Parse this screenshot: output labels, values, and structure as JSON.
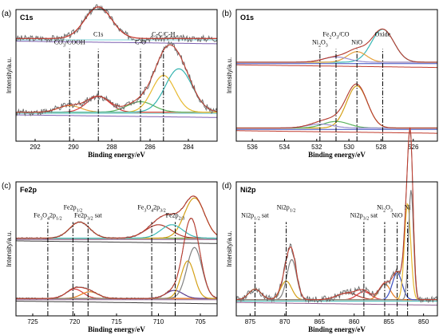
{
  "chart_data": [
    {
      "type": "line",
      "panel_label": "(a)",
      "title": "C1s",
      "xlabel": "Binding energy/eV",
      "ylabel": "Intensity/a.u.",
      "xlim": [
        293,
        282.5
      ],
      "xticks": [
        292,
        290,
        288,
        286,
        284
      ],
      "reference_lines": [
        {
          "x": 290.2,
          "label": "CO3/COOH",
          "label_parts": [
            "CO",
            "3",
            "/COOH"
          ]
        },
        {
          "x": 288.7,
          "label": "C1s",
          "label_parts": [
            "C1s"
          ]
        },
        {
          "x": 286.5,
          "label": "C-O",
          "label_parts": [
            "C-O"
          ]
        },
        {
          "x": 285.3,
          "label": "C-C/C-H",
          "label_parts": [
            "C-C/C-H"
          ]
        }
      ],
      "spectra": [
        {
          "offset": 0.78,
          "noise": 0.05,
          "peaks": [
            [
              288.7,
              0.24,
              0.7,
              "#d63b3b"
            ]
          ],
          "baseline": "#7ad3d8",
          "bg_line": "#7b5fb0"
        },
        {
          "offset": 0.22,
          "noise": 0.05,
          "peaks": [
            [
              290.2,
              0.05,
              0.6,
              "#e6a23c"
            ],
            [
              288.7,
              0.12,
              0.6,
              "#d63b3b"
            ],
            [
              286.5,
              0.08,
              0.7,
              "#5bb25e"
            ],
            [
              285.3,
              0.28,
              0.6,
              "#e7b930"
            ],
            [
              284.5,
              0.33,
              0.7,
              "#35b3b0"
            ]
          ],
          "baseline": "#7ad3d8",
          "bg_line": "#7b5fb0"
        }
      ]
    },
    {
      "type": "line",
      "panel_label": "(b)",
      "title": "O1s",
      "xlabel": "Binding energy/eV",
      "ylabel": "Intensity/a.u.",
      "xlim": [
        537,
        524.5
      ],
      "xticks": [
        536,
        534,
        532,
        530,
        528,
        526
      ],
      "reference_lines": [
        {
          "x": 531.8,
          "label": "Ni2O3",
          "label_parts": [
            "Ni",
            "2",
            "O",
            "3"
          ]
        },
        {
          "x": 530.8,
          "label": "Fe2O3/CO",
          "label_parts": [
            "Fe",
            "2",
            "O",
            "3",
            "/CO"
          ]
        },
        {
          "x": 529.5,
          "label": "NiO",
          "label_parts": [
            "NiO"
          ]
        },
        {
          "x": 527.9,
          "label": "Oxide",
          "label_parts": [
            "Oxide"
          ]
        }
      ],
      "spectra": [
        {
          "offset": 0.6,
          "noise": 0.0,
          "peaks": [
            [
              527.9,
              0.25,
              0.7,
              "#3bb8b5"
            ],
            [
              529.5,
              0.08,
              0.6,
              "#e6a23c"
            ],
            [
              530.8,
              0.04,
              0.8,
              "#9b8fd0"
            ]
          ],
          "baseline": "#3b4fc2",
          "bg_line": "#c0392b"
        },
        {
          "offset": 0.1,
          "noise": 0.0,
          "peaks": [
            [
              529.5,
              0.32,
              0.65,
              "#d4a017"
            ],
            [
              530.8,
              0.05,
              0.8,
              "#5bb25e"
            ],
            [
              531.8,
              0.03,
              0.8,
              "#9b8fd0"
            ]
          ],
          "baseline": "#3b4fc2",
          "bg_line": "#c0392b"
        }
      ]
    },
    {
      "type": "line",
      "panel_label": "(c)",
      "title": "Fe2p",
      "xlabel": "Binding energy/eV",
      "ylabel": "Intensity/a.u.",
      "xlim": [
        727,
        703
      ],
      "xticks": [
        725,
        720,
        715,
        710,
        705
      ],
      "reference_lines": [
        {
          "x": 723.2,
          "label": "Fe3O42p1/2",
          "label_parts": [
            "Fe",
            "3",
            "O",
            "4",
            "2p",
            "1/2"
          ]
        },
        {
          "x": 720.2,
          "label": "Fe2p1/2",
          "label_parts": [
            "Fe2p",
            "1/2"
          ]
        },
        {
          "x": 718.4,
          "label": "Fe2p3/2 sat",
          "label_parts": [
            "Fe2p",
            "3/2",
            " sat"
          ]
        },
        {
          "x": 710.8,
          "label": "Fe3O42p3/2",
          "label_parts": [
            "Fe",
            "3",
            "O",
            "4",
            "2p",
            "3/2"
          ]
        },
        {
          "x": 708.0,
          "label": "Fe2p2/3",
          "label_parts": [
            "Fe2p",
            "2/3"
          ]
        }
      ],
      "spectra": [
        {
          "offset": 0.58,
          "noise": 0.01,
          "peaks": [
            [
              719.4,
              0.12,
              1.2,
              "#6b9a3b"
            ],
            [
              710.0,
              0.1,
              1.5,
              "#b03a2e"
            ],
            [
              705.7,
              0.3,
              1.2,
              "#d4a017"
            ],
            [
              708.4,
              0.1,
              1.3,
              "#3bb8b5"
            ]
          ],
          "baseline": "#8b5a8c",
          "bg_line": "#3a3a3a"
        },
        {
          "offset": 0.13,
          "noise": 0.01,
          "peaks": [
            [
              720.0,
              0.07,
              1.0,
              "#d63b3b"
            ],
            [
              718.2,
              0.05,
              1.0,
              "#e67e22"
            ],
            [
              708.1,
              0.06,
              1.0,
              "#5b3b8c"
            ],
            [
              706.5,
              0.28,
              0.8,
              "#d4a017"
            ],
            [
              705.7,
              0.38,
              0.9,
              "#808080"
            ]
          ],
          "baseline": "#8b5a8c",
          "bg_line": "#3a3a3a"
        }
      ]
    },
    {
      "type": "line",
      "panel_label": "(d)",
      "title": "Ni2p",
      "xlabel": "Binding energy/eV",
      "ylabel": "Intensity/a.u.",
      "xlim": [
        877,
        848
      ],
      "xticks": [
        875,
        870,
        865,
        860,
        855,
        850
      ],
      "reference_lines": [
        {
          "x": 874.3,
          "label": "Ni2p1/2 sat",
          "label_parts": [
            "Ni2p",
            "1/2",
            " sat"
          ]
        },
        {
          "x": 869.8,
          "label": "Ni2p1/2",
          "label_parts": [
            "Ni2p",
            "1/2"
          ]
        },
        {
          "x": 858.6,
          "label": "Ni2p3/2 sat",
          "label_parts": [
            "Ni2p",
            "3/2",
            " sat"
          ]
        },
        {
          "x": 855.6,
          "label": "Ni2O3",
          "label_parts": [
            "Ni",
            "2",
            "O",
            "3"
          ]
        },
        {
          "x": 853.8,
          "label": "NiO",
          "label_parts": [
            "NiO"
          ]
        },
        {
          "x": 852.3,
          "label": "Ni",
          "label_parts": [
            "Ni"
          ]
        }
      ],
      "spectra": [
        {
          "offset": 0.12,
          "noise": 0.05,
          "peaks": [
            [
              874.3,
              0.08,
              0.9,
              "#3bb85e"
            ],
            [
              869.8,
              0.14,
              0.8,
              "#d4a017"
            ],
            [
              869.0,
              0.3,
              0.7,
              "#808080"
            ],
            [
              861.0,
              0.05,
              1.5,
              "#b03a2e"
            ],
            [
              858.6,
              0.06,
              1.0,
              "#d63b3b"
            ],
            [
              855.6,
              0.12,
              0.8,
              "#e67e22"
            ],
            [
              853.8,
              0.2,
              0.7,
              "#3b4fc2"
            ],
            [
              852.3,
              0.72,
              0.45,
              "#e7b930"
            ],
            [
              851.8,
              0.82,
              0.35,
              "#808080"
            ]
          ],
          "baseline": "#3bb8b5",
          "bg_line": "#8b5a8c"
        }
      ]
    }
  ]
}
